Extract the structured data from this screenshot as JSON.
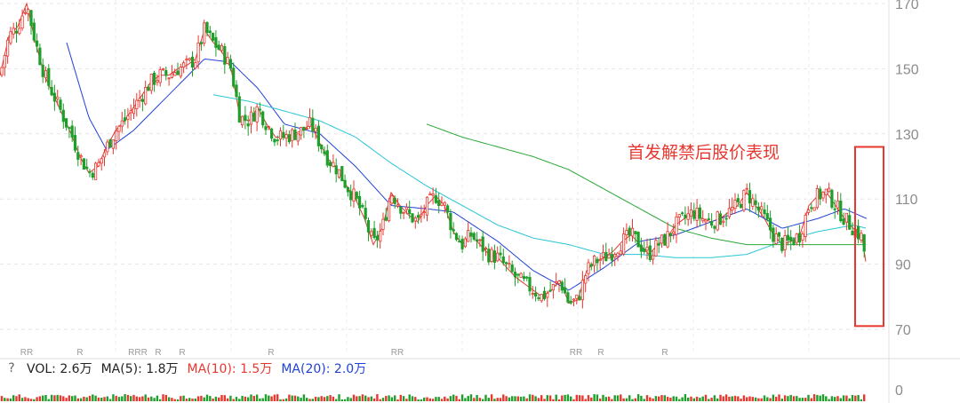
{
  "chart_data": {
    "type": "candlestick",
    "ylim": [
      66,
      172
    ],
    "y_ticks": [
      170,
      150,
      130,
      110,
      90,
      70
    ],
    "grid": true,
    "candle_colors": {
      "up": "#e8372f",
      "down": "#1e9e2a"
    },
    "ma_colors": {
      "ma5": "#e8372f",
      "ma10": "#1f43d6",
      "ma20": "#28c6d6",
      "ma60": "#2aa837"
    },
    "price_path": [
      [
        0,
        148
      ],
      [
        10,
        160
      ],
      [
        20,
        163
      ],
      [
        30,
        170
      ],
      [
        40,
        158
      ],
      [
        50,
        148
      ],
      [
        60,
        142
      ],
      [
        70,
        136
      ],
      [
        80,
        130
      ],
      [
        90,
        123
      ],
      [
        100,
        118
      ],
      [
        110,
        120
      ],
      [
        120,
        126
      ],
      [
        130,
        131
      ],
      [
        140,
        134
      ],
      [
        150,
        138
      ],
      [
        160,
        142
      ],
      [
        170,
        146
      ],
      [
        180,
        148
      ],
      [
        190,
        148
      ],
      [
        200,
        150
      ],
      [
        210,
        151
      ],
      [
        220,
        153
      ],
      [
        230,
        162
      ],
      [
        240,
        158
      ],
      [
        250,
        155
      ],
      [
        260,
        150
      ],
      [
        270,
        135
      ],
      [
        280,
        134
      ],
      [
        290,
        138
      ],
      [
        300,
        133
      ],
      [
        310,
        129
      ],
      [
        320,
        129
      ],
      [
        330,
        130
      ],
      [
        340,
        131
      ],
      [
        350,
        133
      ],
      [
        360,
        127
      ],
      [
        370,
        122
      ],
      [
        380,
        119
      ],
      [
        390,
        114
      ],
      [
        400,
        110
      ],
      [
        410,
        104
      ],
      [
        420,
        96
      ],
      [
        430,
        101
      ],
      [
        440,
        112
      ],
      [
        450,
        108
      ],
      [
        460,
        105
      ],
      [
        470,
        103
      ],
      [
        480,
        108
      ],
      [
        490,
        111
      ],
      [
        500,
        108
      ],
      [
        510,
        100
      ],
      [
        520,
        96
      ],
      [
        530,
        99
      ],
      [
        540,
        96
      ],
      [
        550,
        93
      ],
      [
        560,
        92
      ],
      [
        570,
        89
      ],
      [
        580,
        86
      ],
      [
        590,
        84
      ],
      [
        600,
        82
      ],
      [
        610,
        80
      ],
      [
        620,
        82
      ],
      [
        630,
        85
      ],
      [
        640,
        78
      ],
      [
        650,
        79
      ],
      [
        660,
        88
      ],
      [
        670,
        91
      ],
      [
        680,
        92
      ],
      [
        690,
        94
      ],
      [
        700,
        97
      ],
      [
        710,
        99
      ],
      [
        720,
        96
      ],
      [
        730,
        93
      ],
      [
        740,
        96
      ],
      [
        750,
        98
      ],
      [
        760,
        102
      ],
      [
        770,
        104
      ],
      [
        780,
        106
      ],
      [
        790,
        104
      ],
      [
        800,
        103
      ],
      [
        810,
        104
      ],
      [
        820,
        106
      ],
      [
        830,
        108
      ],
      [
        840,
        112
      ],
      [
        850,
        108
      ],
      [
        860,
        104
      ],
      [
        870,
        99
      ],
      [
        880,
        96
      ],
      [
        890,
        97
      ],
      [
        900,
        99
      ],
      [
        910,
        108
      ],
      [
        920,
        111
      ],
      [
        930,
        112
      ],
      [
        940,
        108
      ],
      [
        950,
        104
      ],
      [
        960,
        101
      ],
      [
        970,
        98
      ],
      [
        975,
        89
      ]
    ],
    "ma_paths": {
      "ma10": [
        [
          75,
          158
        ],
        [
          100,
          135
        ],
        [
          120,
          125
        ],
        [
          150,
          131
        ],
        [
          190,
          142
        ],
        [
          230,
          153
        ],
        [
          260,
          152
        ],
        [
          290,
          144
        ],
        [
          320,
          133
        ],
        [
          360,
          130
        ],
        [
          400,
          120
        ],
        [
          440,
          108
        ],
        [
          480,
          107
        ],
        [
          510,
          106
        ],
        [
          560,
          97
        ],
        [
          600,
          88
        ],
        [
          640,
          82
        ],
        [
          680,
          89
        ],
        [
          720,
          97
        ],
        [
          760,
          99
        ],
        [
          800,
          103
        ],
        [
          840,
          107
        ],
        [
          880,
          101
        ],
        [
          920,
          104
        ],
        [
          950,
          107
        ],
        [
          975,
          104
        ]
      ],
      "ma20": [
        [
          240,
          142
        ],
        [
          280,
          140
        ],
        [
          320,
          137
        ],
        [
          360,
          134
        ],
        [
          400,
          129
        ],
        [
          440,
          121
        ],
        [
          480,
          114
        ],
        [
          520,
          108
        ],
        [
          560,
          102
        ],
        [
          600,
          98
        ],
        [
          640,
          96
        ],
        [
          680,
          93
        ],
        [
          720,
          93
        ],
        [
          760,
          92
        ],
        [
          800,
          92
        ],
        [
          840,
          93
        ],
        [
          880,
          97
        ],
        [
          920,
          100
        ],
        [
          960,
          102
        ],
        [
          975,
          101
        ]
      ],
      "ma60": [
        [
          480,
          133
        ],
        [
          520,
          129
        ],
        [
          560,
          126
        ],
        [
          600,
          123
        ],
        [
          640,
          119
        ],
        [
          680,
          113
        ],
        [
          720,
          107
        ],
        [
          760,
          101
        ],
        [
          800,
          98
        ],
        [
          840,
          96
        ],
        [
          880,
          96
        ],
        [
          920,
          96
        ],
        [
          960,
          96
        ],
        [
          975,
          96
        ]
      ]
    },
    "r_markers": [
      "RR",
      "R",
      "RRR",
      "R",
      "R",
      "R",
      "RR",
      "RR",
      "R",
      "R"
    ],
    "r_marker_x": [
      30,
      90,
      155,
      178,
      205,
      305,
      447,
      648,
      676,
      748
    ],
    "annotation": {
      "text": "首发解禁后股价表现",
      "highlight_range": [
        71,
        126
      ]
    },
    "volume": {
      "vol": "VOL: 2.6万",
      "ma5": "MA(5): 1.8万",
      "ma10": "MA(10): 1.5万",
      "ma20": "MA(20): 2.0万",
      "colors": {
        "vol": "#222222",
        "ma5": "#222222",
        "ma10": "#e8372f",
        "ma20": "#1f43d6"
      },
      "axis_label": "0"
    }
  },
  "ui": {
    "help_icon": "?"
  }
}
